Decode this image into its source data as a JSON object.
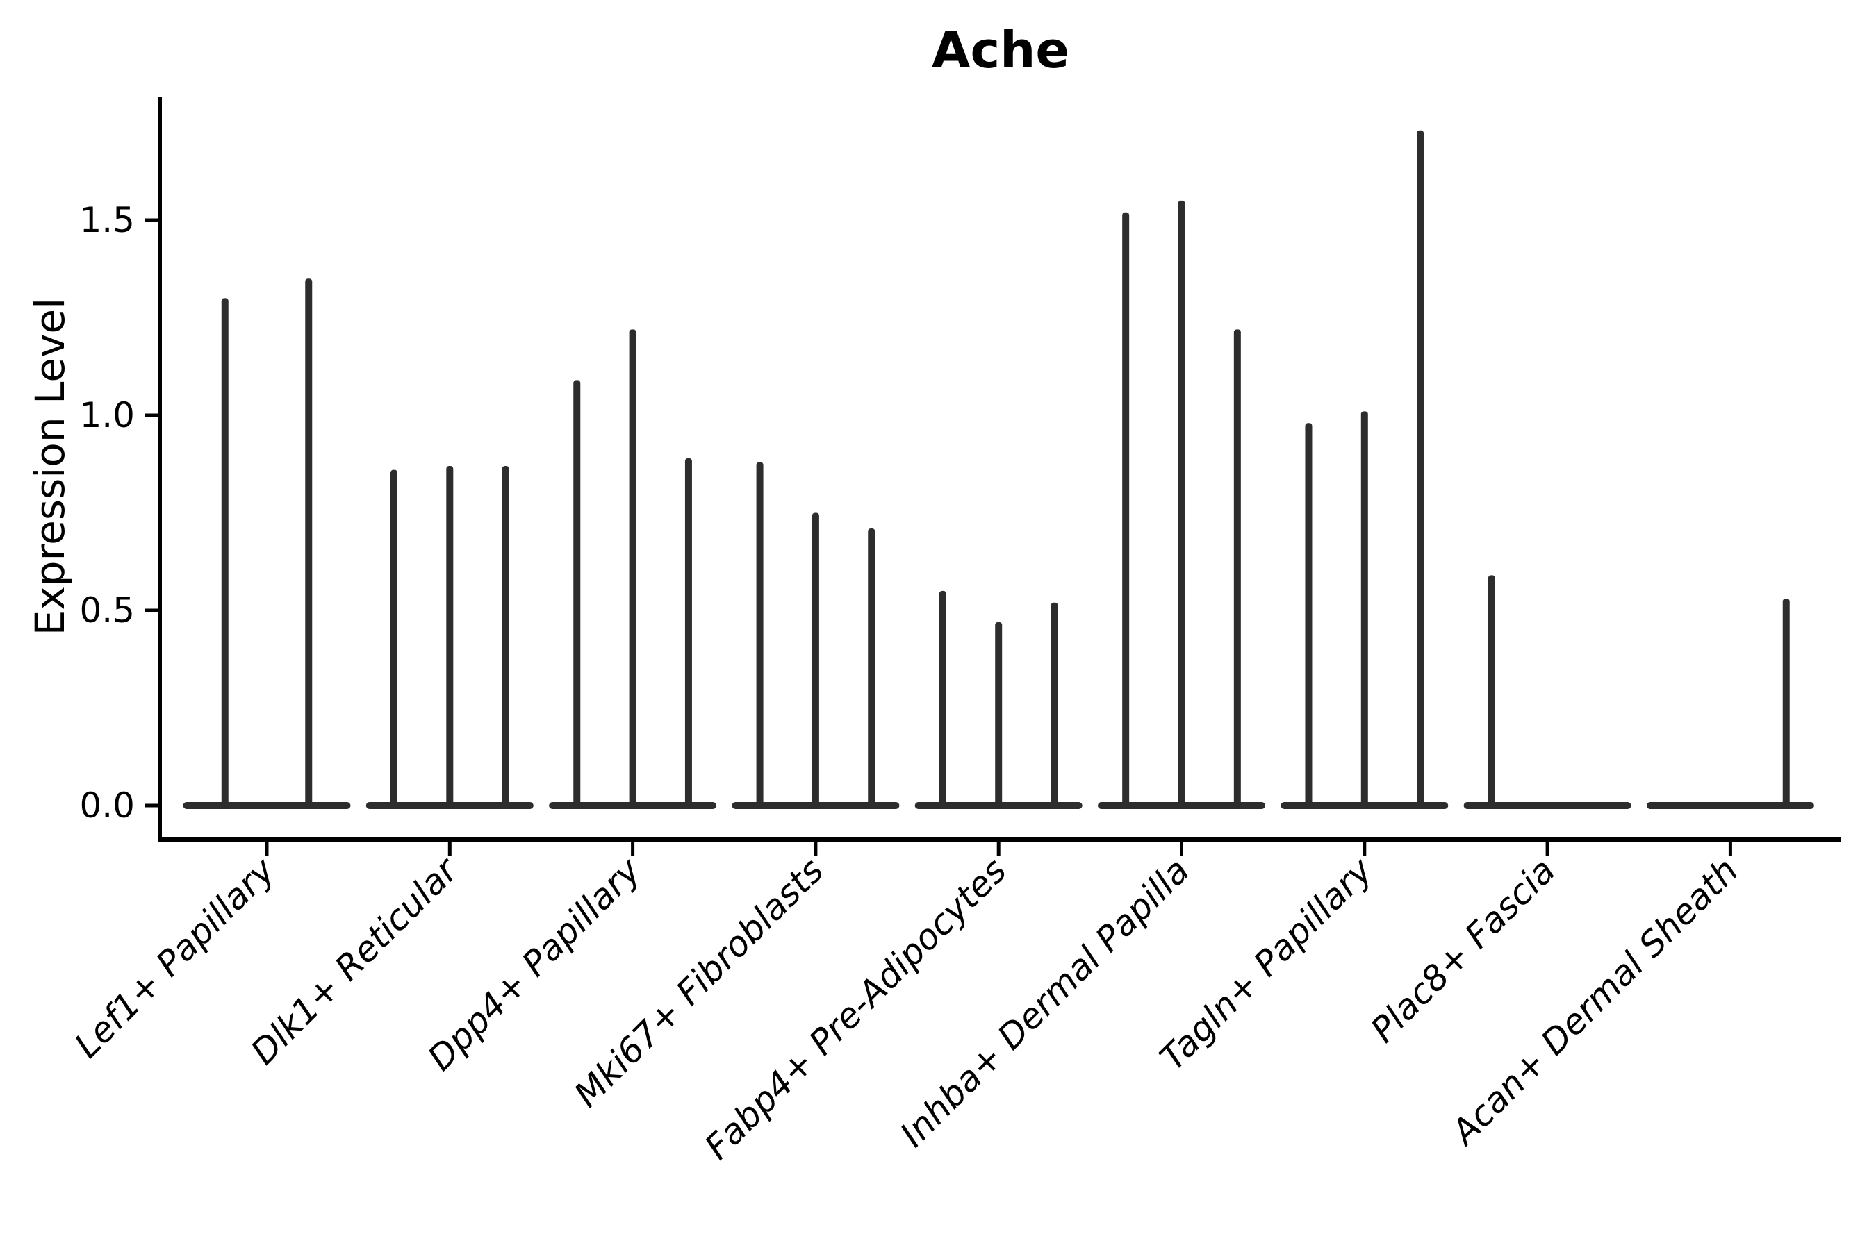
{
  "chart_data": {
    "type": "violin",
    "title": "Ache",
    "ylabel": "Expression Level",
    "xlabel": "",
    "ylim": [
      0,
      1.81
    ],
    "yticks": [
      {
        "value": 0.0,
        "label": "0.0"
      },
      {
        "value": 0.5,
        "label": "0.5"
      },
      {
        "value": 1.0,
        "label": "1.0"
      },
      {
        "value": 1.5,
        "label": "1.5"
      }
    ],
    "grid": false,
    "legend": "none",
    "style_note": "thin spike violins: wide flat base at 0 with narrow vertical spike up to max expression per violin",
    "categories": [
      {
        "label": "Lef1+ Papillary",
        "violin_maxima": [
          1.3,
          1.35
        ]
      },
      {
        "label": "Dlk1+ Reticular",
        "violin_maxima": [
          0.86,
          0.87,
          0.87
        ]
      },
      {
        "label": "Dpp4+ Papillary",
        "violin_maxima": [
          1.09,
          1.22,
          0.89
        ]
      },
      {
        "label": "Mki67+ Fibroblasts",
        "violin_maxima": [
          0.88,
          0.75,
          0.71
        ]
      },
      {
        "label": "Fabp4+ Pre-Adipocytes",
        "violin_maxima": [
          0.55,
          0.47,
          0.52
        ]
      },
      {
        "label": "Inhba+ Dermal Papilla",
        "violin_maxima": [
          1.52,
          1.55,
          1.22
        ]
      },
      {
        "label": "Tagln+ Papillary",
        "violin_maxima": [
          0.98,
          1.01,
          1.73
        ]
      },
      {
        "label": "Plac8+ Fascia",
        "violin_maxima": [
          0.59,
          0.0,
          0.0
        ]
      },
      {
        "label": "Acan+ Dermal Sheath",
        "violin_maxima": [
          0.0,
          0.0,
          0.53
        ]
      }
    ],
    "colors": {
      "violin": "#2d2d2d",
      "axis": "#000000",
      "text": "#000000",
      "background": "#ffffff"
    }
  }
}
